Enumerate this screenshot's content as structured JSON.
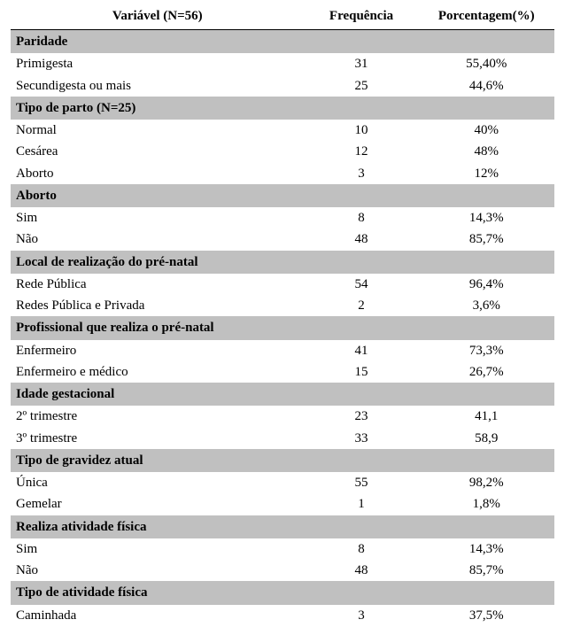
{
  "colors": {
    "section_bg": "#c0c0c0",
    "text": "#000000",
    "background": "#ffffff",
    "header_rule": "#000000"
  },
  "typography": {
    "font_family": "Times New Roman",
    "base_fontsize_pt": 12,
    "header_weight": "bold",
    "section_weight": "bold"
  },
  "table": {
    "columns": [
      {
        "key": "variable",
        "label": "Variável (N=56)",
        "width_pct": 54,
        "align": "left"
      },
      {
        "key": "frequency",
        "label": "Frequência",
        "width_pct": 21,
        "align": "center"
      },
      {
        "key": "percentage",
        "label": "Porcentagem(%)",
        "width_pct": 25,
        "align": "center"
      }
    ],
    "sections": [
      {
        "title": "Paridade",
        "rows": [
          {
            "variable": "Primigesta",
            "frequency": "31",
            "percentage": "55,40%"
          },
          {
            "variable": "Secundigesta ou mais",
            "frequency": "25",
            "percentage": "44,6%"
          }
        ]
      },
      {
        "title": "Tipo de parto (N=25)",
        "rows": [
          {
            "variable": "Normal",
            "frequency": "10",
            "percentage": "40%"
          },
          {
            "variable": "Cesárea",
            "frequency": "12",
            "percentage": "48%"
          },
          {
            "variable": "Aborto",
            "frequency": "3",
            "percentage": "12%"
          }
        ]
      },
      {
        "title": "Aborto",
        "rows": [
          {
            "variable": "Sim",
            "frequency": "8",
            "percentage": "14,3%"
          },
          {
            "variable": "Não",
            "frequency": "48",
            "percentage": "85,7%"
          }
        ]
      },
      {
        "title": "Local de realização do pré-natal",
        "rows": [
          {
            "variable": "Rede Pública",
            "frequency": "54",
            "percentage": "96,4%"
          },
          {
            "variable": "Redes Pública e Privada",
            "frequency": "2",
            "percentage": "3,6%"
          }
        ]
      },
      {
        "title": "Profissional que realiza o pré-natal",
        "rows": [
          {
            "variable": "Enfermeiro",
            "frequency": "41",
            "percentage": "73,3%"
          },
          {
            "variable": "Enfermeiro e médico",
            "frequency": "15",
            "percentage": "26,7%"
          }
        ]
      },
      {
        "title": "Idade gestacional",
        "rows": [
          {
            "variable": "2º trimestre",
            "frequency": "23",
            "percentage": "41,1"
          },
          {
            "variable": "3º trimestre",
            "frequency": "33",
            "percentage": "58,9"
          }
        ]
      },
      {
        "title": "Tipo de gravidez atual",
        "rows": [
          {
            "variable": "Única",
            "frequency": "55",
            "percentage": "98,2%"
          },
          {
            "variable": "Gemelar",
            "frequency": "1",
            "percentage": "1,8%"
          }
        ]
      },
      {
        "title": "Realiza atividade física",
        "rows": [
          {
            "variable": "Sim",
            "frequency": "8",
            "percentage": "14,3%"
          },
          {
            "variable": "Não",
            "frequency": "48",
            "percentage": "85,7%"
          }
        ]
      },
      {
        "title": "Tipo de atividade física",
        "rows": [
          {
            "variable": "Caminhada",
            "frequency": "3",
            "percentage": "37,5%"
          }
        ]
      }
    ]
  }
}
